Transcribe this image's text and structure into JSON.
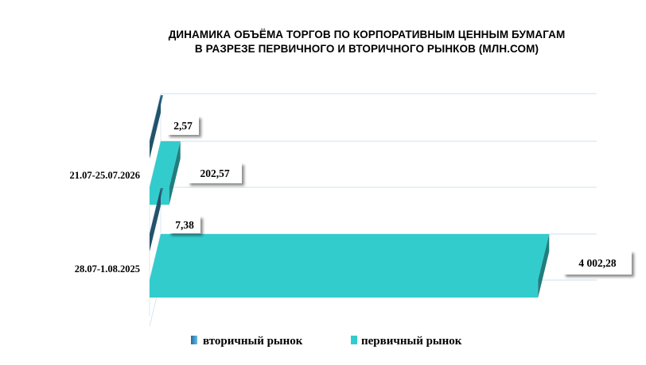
{
  "chart_data": {
    "type": "bar",
    "orientation": "horizontal",
    "title_lines": [
      "ДИНАМИКА ОБЪЁМА ТОРГОВ ПО КОРПОРАТИВНЫМ ЦЕННЫМ БУМАГАМ",
      "В РАЗРЕЗЕ ПЕРВИЧНОГО И ВТОРИЧНОГО РЫНКОВ  (МЛН.СОМ)"
    ],
    "categories": [
      "21.07-25.07.2026",
      "28.07-1.08.2025"
    ],
    "series": [
      {
        "name": "вторичный рынок",
        "values": [
          2.57,
          7.38
        ],
        "labels": [
          "2,57",
          "7,38"
        ],
        "color": "#2e6f8e"
      },
      {
        "name": "первичный рынок",
        "values": [
          202.57,
          4002.28
        ],
        "labels": [
          "202,57",
          "4 002,28"
        ],
        "color": "#33cccc"
      }
    ],
    "xlim": [
      0,
      4000
    ],
    "grid": true,
    "legend_position": "bottom",
    "style": "3d"
  }
}
